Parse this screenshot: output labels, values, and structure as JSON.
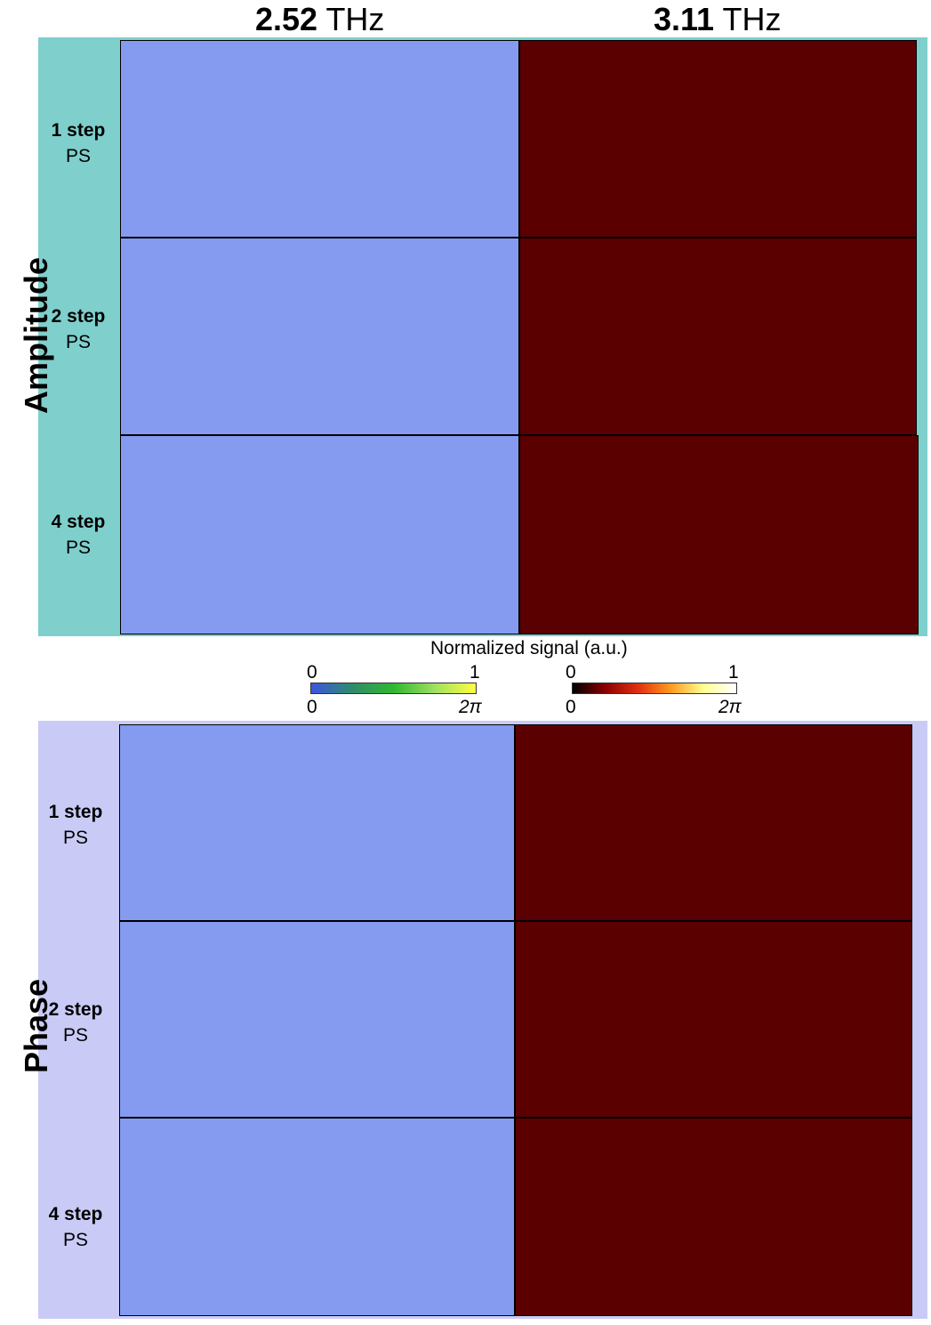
{
  "headers": {
    "left": {
      "value": "2.52",
      "unit": "THz"
    },
    "right": {
      "value": "3.11",
      "unit": "THz"
    }
  },
  "sections": {
    "amplitude": {
      "title": "Amplitude",
      "bg_color": "#7fcfcc"
    },
    "phase": {
      "title": "Phase",
      "bg_color": "#c9cbf6"
    }
  },
  "rows": [
    {
      "steps": "1 step",
      "method": "PS"
    },
    {
      "steps": "2 step",
      "method": "PS"
    },
    {
      "steps": "4 step",
      "method": "PS"
    }
  ],
  "colorbars": {
    "title": "Normalized signal (a.u.)",
    "left": {
      "top_min": "0",
      "top_max": "1",
      "bottom_min": "0",
      "bottom_max": "2π",
      "colors": [
        "#3c55e0",
        "#2f8c6a",
        "#30b830",
        "#9ee060",
        "#ffff40"
      ]
    },
    "right": {
      "top_min": "0",
      "top_max": "1",
      "bottom_min": "0",
      "bottom_max": "2π",
      "colors": [
        "#000000",
        "#8a0000",
        "#e03010",
        "#ff9a20",
        "#ffff90",
        "#ffffff"
      ]
    }
  },
  "palettes": {
    "blue_green": [
      "#3c55e0",
      "#2f8c6a",
      "#30b830",
      "#9ee060",
      "#ffff40"
    ],
    "hot": [
      "#1a0000",
      "#8a0000",
      "#e03010",
      "#ff9a20",
      "#ffd060",
      "#ffffb0"
    ]
  }
}
